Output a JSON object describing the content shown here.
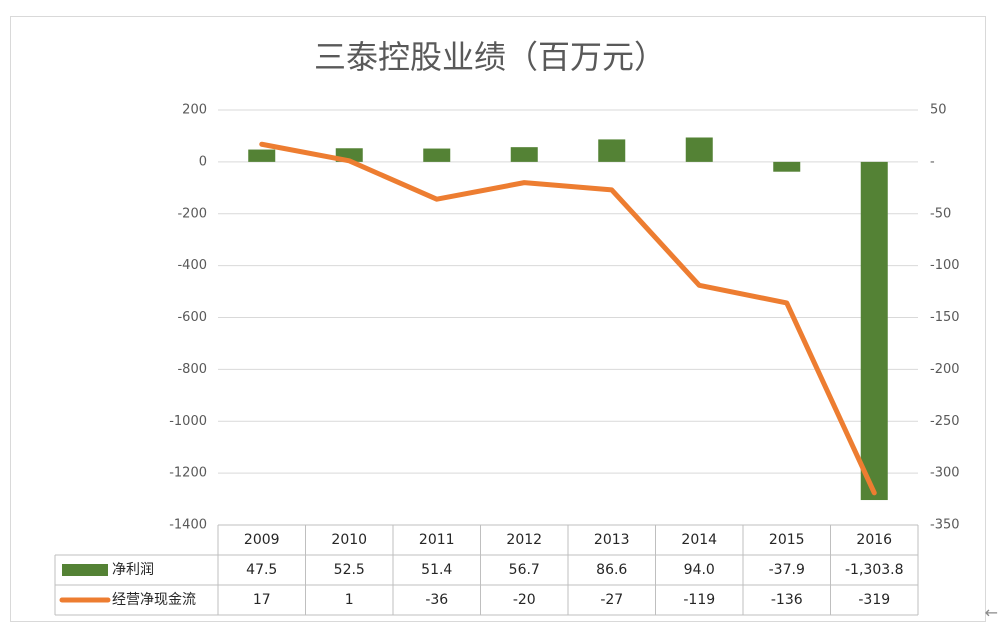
{
  "chart_data": {
    "type": "bar",
    "title": "三泰控股业绩（百万元）",
    "categories": [
      "2009",
      "2010",
      "2011",
      "2012",
      "2013",
      "2014",
      "2015",
      "2016"
    ],
    "series": [
      {
        "name": "净利润",
        "type": "bar",
        "axis": "left",
        "color": "#548235",
        "values": [
          47.5,
          52.5,
          51.4,
          56.7,
          86.6,
          94.0,
          -37.9,
          -1303.8
        ],
        "labels": [
          "47.5",
          "52.5",
          "51.4",
          "56.7",
          "86.6",
          "94.0",
          "-37.9",
          "-1,303.8"
        ]
      },
      {
        "name": "经营净现金流",
        "type": "line",
        "axis": "right",
        "color": "#ed7d31",
        "values": [
          17,
          1,
          -36,
          -20,
          -27,
          -119,
          -136,
          -319
        ],
        "labels": [
          "17",
          "1",
          "-36",
          "-20",
          "-27",
          "-119",
          "-136",
          "-319"
        ]
      }
    ],
    "left_axis": {
      "ylim": [
        -1400,
        200
      ],
      "ticks": [
        200,
        0,
        -200,
        -400,
        -600,
        -800,
        -1000,
        -1200,
        -1400
      ],
      "tick_labels": [
        "200",
        "0",
        "-200",
        "-400",
        "-600",
        "-800",
        "-1000",
        "-1200",
        "-1400"
      ]
    },
    "right_axis": {
      "ylim": [
        -350,
        50
      ],
      "ticks": [
        50,
        0,
        -50,
        -100,
        -150,
        -200,
        -250,
        -300,
        -350
      ],
      "tick_labels": [
        "50",
        "-",
        "-50",
        "-100",
        "-150",
        "-200",
        "-250",
        "-300",
        "-350"
      ]
    },
    "grid": true,
    "legend": "data-table"
  },
  "trail_glyph": "←"
}
